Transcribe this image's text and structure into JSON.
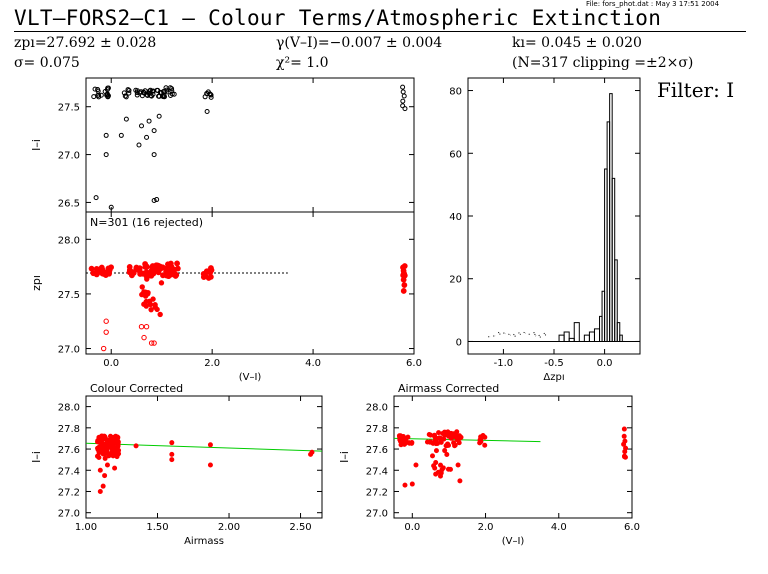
{
  "file_info": "File: fors_phot.dat : May  3 17:51 2004",
  "title": "VLT–FORS2–C1  –  Colour Terms/Atmospheric Extinction",
  "fit": {
    "zp": "zpı=27.692 ± 0.028",
    "sigma": "σ= 0.075",
    "gamma": "γ(V–I)=−0.007 ± 0.004",
    "chi2": "χ²=  1.0",
    "k": "kı= 0.045 ± 0.020",
    "n_clip": "(N=317 clipping =±2×σ)"
  },
  "filter_label": "Filter: I",
  "colors": {
    "accepted": "#ff0000",
    "rejected": "#ff0000",
    "fit_line": "#00cc00",
    "raw_points": "#000000"
  },
  "chart_data": [
    {
      "id": "raw",
      "type": "scatter",
      "xlabel": "",
      "ylabel": "I–i",
      "xlim": [
        -0.5,
        6.0
      ],
      "ylim": [
        26.4,
        27.8
      ],
      "yticks": [
        26.5,
        27.0,
        27.5
      ],
      "xticks": [
        0.0,
        2.0,
        4.0,
        6.0
      ],
      "show_xticklabels": false
    },
    {
      "id": "zp",
      "type": "scatter",
      "annotation": "N=301 (16 rejected)",
      "xlabel": "(V–I)",
      "ylabel": "zpı",
      "xlim": [
        -0.5,
        6.0
      ],
      "ylim": [
        26.95,
        28.25
      ],
      "yticks": [
        27.0,
        27.5,
        28.0
      ],
      "xticks": [
        0.0,
        2.0,
        4.0,
        6.0
      ],
      "reference_line": {
        "y": 27.692,
        "x": [
          -0.5,
          3.5
        ]
      }
    },
    {
      "id": "hist",
      "type": "bar",
      "xlabel": "Δzpı",
      "ylabel": "",
      "xlim": [
        -1.35,
        0.35
      ],
      "ylim": [
        -4,
        84
      ],
      "xticks": [
        -1.0,
        -0.5,
        0.0
      ],
      "yticks": [
        0,
        20,
        40,
        60,
        80
      ],
      "bins_x": [
        -0.45,
        -0.4,
        -0.35,
        -0.3,
        -0.25,
        -0.2,
        -0.15,
        -0.1,
        -0.05,
        -0.025,
        0.0,
        0.025,
        0.05,
        0.075,
        0.1,
        0.125,
        0.15,
        0.175
      ],
      "bins_y": [
        2,
        3,
        1,
        6,
        0,
        2,
        3,
        4,
        8,
        16,
        55,
        70,
        79,
        52,
        26,
        6,
        2,
        0
      ]
    },
    {
      "id": "colour_corrected",
      "type": "scatter",
      "title": "Colour Corrected",
      "xlabel": "Airmass",
      "ylabel": "I–i",
      "xlim": [
        1.0,
        2.65
      ],
      "ylim": [
        26.95,
        28.1
      ],
      "xticks": [
        1.0,
        1.5,
        2.0,
        2.5
      ],
      "yticks": [
        27.0,
        27.2,
        27.4,
        27.6,
        27.8,
        28.0
      ],
      "fit_line": {
        "x": [
          1.0,
          2.65
        ],
        "y": [
          27.655,
          27.58
        ]
      }
    },
    {
      "id": "airmass_corrected",
      "type": "scatter",
      "title": "Airmass Corrected",
      "xlabel": "(V–I)",
      "ylabel": "I–i",
      "xlim": [
        -0.5,
        6.0
      ],
      "ylim": [
        26.95,
        28.1
      ],
      "xticks": [
        0.0,
        2.0,
        4.0,
        6.0
      ],
      "yticks": [
        27.0,
        27.2,
        27.4,
        27.6,
        27.8,
        28.0
      ],
      "fit_line": {
        "x": [
          -0.5,
          3.5
        ],
        "y": [
          27.7,
          27.67
        ]
      }
    }
  ]
}
